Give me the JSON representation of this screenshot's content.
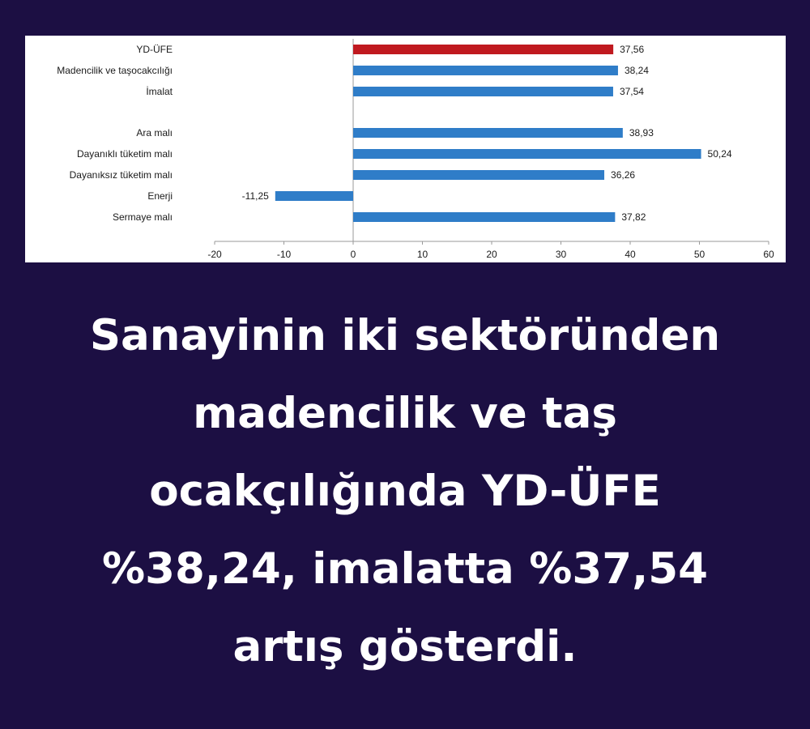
{
  "chart_data": {
    "type": "bar",
    "orientation": "horizontal",
    "categories": [
      "YD-ÜFE",
      "Madencilik ve taşocakcılığı",
      "İmalat",
      "Ara malı",
      "Dayanıklı tüketim malı",
      "Dayanıksız tüketim malı",
      "Enerji",
      "Sermaye malı"
    ],
    "values": [
      37.56,
      38.24,
      37.54,
      38.93,
      50.24,
      36.26,
      -11.25,
      37.82
    ],
    "value_labels": [
      "37,56",
      "38,24",
      "37,54",
      "38,93",
      "50,24",
      "36,26",
      "-11,25",
      "37,82"
    ],
    "bar_colors": [
      "#c0191f",
      "#2f7dc8",
      "#2f7dc8",
      "#2f7dc8",
      "#2f7dc8",
      "#2f7dc8",
      "#2f7dc8",
      "#2f7dc8"
    ],
    "group_break_after": 2,
    "xlim": [
      -20,
      60
    ],
    "x_ticks": [
      -20,
      -10,
      0,
      10,
      20,
      30,
      40,
      50,
      60
    ],
    "x_tick_labels": [
      "-20",
      "-10",
      "0",
      "10",
      "20",
      "30",
      "40",
      "50",
      "60"
    ],
    "grid": false,
    "title": "",
    "xlabel": "",
    "ylabel": ""
  },
  "headline": {
    "lines": [
      "Sanayinin iki sektöründen",
      "madencilik ve taş",
      "ocakçılığında YD-ÜFE",
      "%38,24, imalatta %37,54",
      "artış gösterdi."
    ]
  },
  "colors": {
    "background": "#1c0f43",
    "panel": "#ffffff",
    "highlight_bar": "#c0191f",
    "bar": "#2f7dc8",
    "axis": "#9a9a9a",
    "headline_text": "#ffffff"
  }
}
